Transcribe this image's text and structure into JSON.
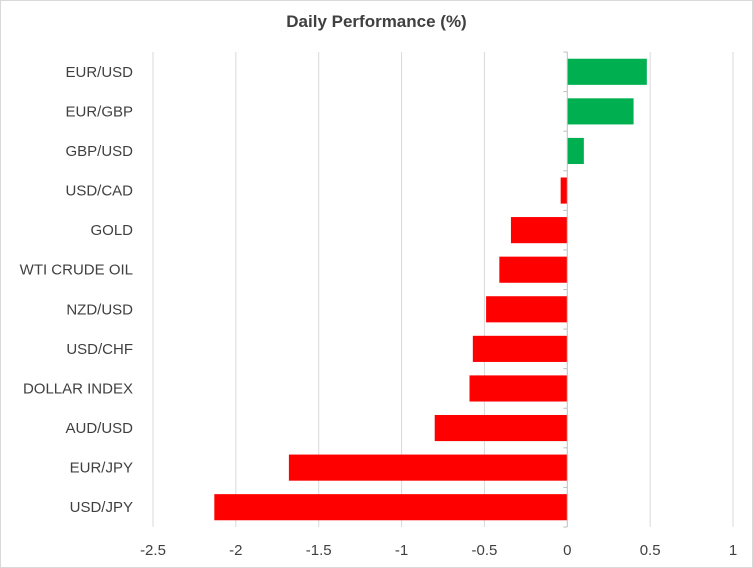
{
  "chart_data": {
    "type": "bar",
    "orientation": "horizontal",
    "title": "Daily Performance (%)",
    "xlabel": "",
    "ylabel": "",
    "categories": [
      "EUR/USD",
      "EUR/GBP",
      "GBP/USD",
      "USD/CAD",
      "GOLD",
      "WTI CRUDE OIL",
      "NZD/USD",
      "USD/CHF",
      "DOLLAR INDEX",
      "AUD/USD",
      "EUR/JPY",
      "USD/JPY"
    ],
    "values": [
      0.48,
      0.4,
      0.1,
      -0.04,
      -0.34,
      -0.41,
      -0.49,
      -0.57,
      -0.59,
      -0.8,
      -1.68,
      -2.13
    ],
    "xlim": [
      -2.5,
      1
    ],
    "x_ticks": [
      "-2.5",
      "-2",
      "-1.5",
      "-1",
      "-0.5",
      "0",
      "0.5",
      "1"
    ],
    "x_tick_values": [
      -2.5,
      -2,
      -1.5,
      -1,
      -0.5,
      0,
      0.5,
      1
    ],
    "grid": "vertical",
    "legend": "none",
    "colors": {
      "positive": "#00b050",
      "negative": "#ff0000",
      "gridline": "#d9d9d9",
      "zero_axis": "#bfbfbf",
      "text": "#404040"
    }
  }
}
